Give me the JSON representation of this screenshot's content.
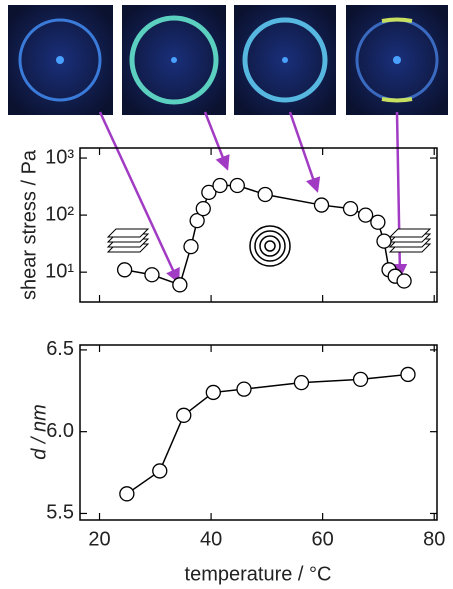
{
  "chart_data": [
    {
      "type": "line",
      "ylabel": "shear stress / Pa",
      "log_y": true,
      "x": [
        24.5,
        29.4,
        34.4,
        36.4,
        37.5,
        38.6,
        39.6,
        41.6,
        44.7,
        49.7,
        59.8,
        65,
        67.7,
        69.9,
        71,
        71.9,
        73,
        74.6
      ],
      "series": [
        {
          "color": "#000000",
          "values": [
            11,
            9,
            6,
            28,
            80,
            130,
            250,
            330,
            330,
            230,
            150,
            130,
            100,
            75,
            35,
            11,
            8.5,
            7
          ]
        }
      ],
      "xlim": [
        16.5,
        80.5
      ],
      "xticks": [
        20,
        40,
        60,
        80
      ],
      "ylim": [
        3,
        1500
      ],
      "yticks": [
        {
          "value": 10,
          "label": "10¹"
        },
        {
          "value": 100,
          "label": "10²"
        },
        {
          "value": 1000,
          "label": "10³"
        }
      ]
    },
    {
      "type": "line",
      "xlabel": "temperature / °C",
      "ylabel": "d / nm",
      "x": [
        24.9,
        30.8,
        35.1,
        40.4,
        45.9,
        56.2,
        66.8,
        75.3
      ],
      "series": [
        {
          "color": "#000000",
          "values": [
            5.62,
            5.76,
            6.1,
            6.24,
            6.26,
            6.3,
            6.32,
            6.35
          ]
        }
      ],
      "xlim": [
        16.5,
        80.5
      ],
      "xticks": [
        20,
        40,
        60,
        80
      ],
      "ylim": [
        5.46,
        6.53
      ],
      "yticks": [
        5.5,
        {
          "value": 6.0,
          "label": "6.0"
        },
        6.5
      ]
    }
  ]
}
